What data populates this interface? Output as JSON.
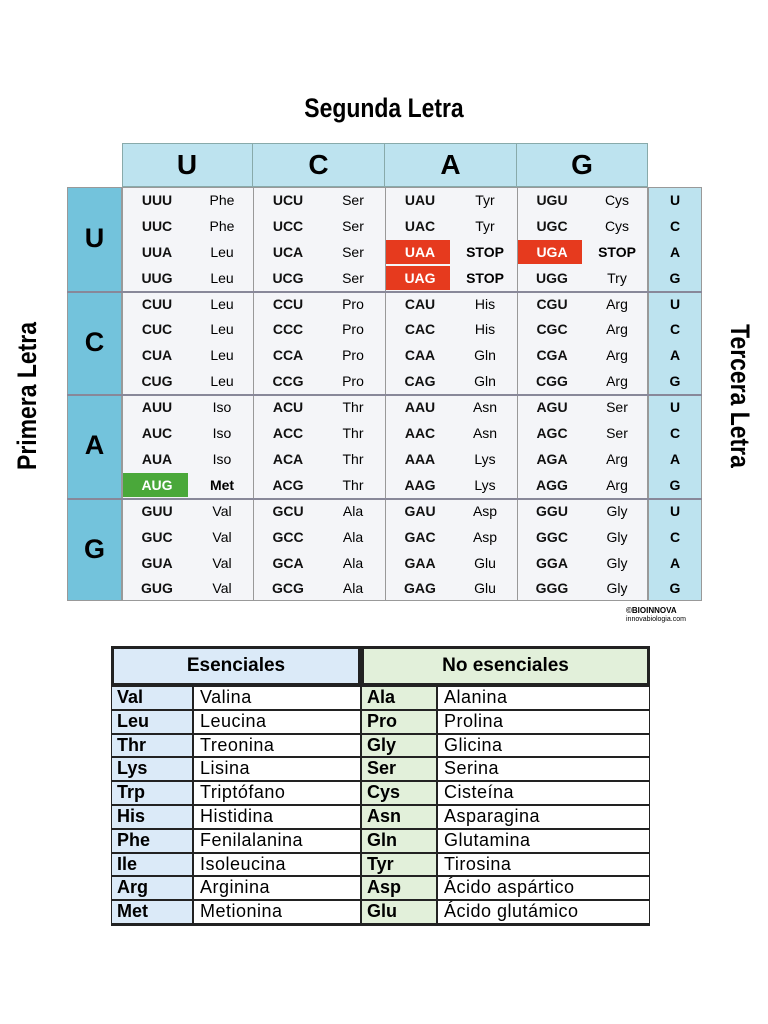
{
  "title": "Segunda Letra",
  "left_label": "Primera Letra",
  "right_label": "Tercera Letra",
  "second_letters": [
    "U",
    "C",
    "A",
    "G"
  ],
  "blocks": [
    {
      "first": "U",
      "rows": [
        {
          "third": "U",
          "cells": [
            {
              "codon": "UUU",
              "aa": "Phe"
            },
            {
              "codon": "UCU",
              "aa": "Ser"
            },
            {
              "codon": "UAU",
              "aa": "Tyr"
            },
            {
              "codon": "UGU",
              "aa": "Cys"
            }
          ]
        },
        {
          "third": "C",
          "cells": [
            {
              "codon": "UUC",
              "aa": "Phe"
            },
            {
              "codon": "UCC",
              "aa": "Ser"
            },
            {
              "codon": "UAC",
              "aa": "Tyr"
            },
            {
              "codon": "UGC",
              "aa": "Cys"
            }
          ]
        },
        {
          "third": "A",
          "cells": [
            {
              "codon": "UUA",
              "aa": "Leu"
            },
            {
              "codon": "UCA",
              "aa": "Ser"
            },
            {
              "codon": "UAA",
              "aa": "STOP",
              "color": "#e63a1e"
            },
            {
              "codon": "UGA",
              "aa": "STOP",
              "color": "#e63a1e"
            }
          ]
        },
        {
          "third": "G",
          "cells": [
            {
              "codon": "UUG",
              "aa": "Leu"
            },
            {
              "codon": "UCG",
              "aa": "Ser"
            },
            {
              "codon": "UAG",
              "aa": "STOP",
              "color": "#e63a1e"
            },
            {
              "codon": "UGG",
              "aa": "Try"
            }
          ]
        }
      ]
    },
    {
      "first": "C",
      "rows": [
        {
          "third": "U",
          "cells": [
            {
              "codon": "CUU",
              "aa": "Leu"
            },
            {
              "codon": "CCU",
              "aa": "Pro"
            },
            {
              "codon": "CAU",
              "aa": "His"
            },
            {
              "codon": "CGU",
              "aa": "Arg"
            }
          ]
        },
        {
          "third": "C",
          "cells": [
            {
              "codon": "CUC",
              "aa": "Leu"
            },
            {
              "codon": "CCC",
              "aa": "Pro"
            },
            {
              "codon": "CAC",
              "aa": "His"
            },
            {
              "codon": "CGC",
              "aa": "Arg"
            }
          ]
        },
        {
          "third": "A",
          "cells": [
            {
              "codon": "CUA",
              "aa": "Leu"
            },
            {
              "codon": "CCA",
              "aa": "Pro"
            },
            {
              "codon": "CAA",
              "aa": "Gln"
            },
            {
              "codon": "CGA",
              "aa": "Arg"
            }
          ]
        },
        {
          "third": "G",
          "cells": [
            {
              "codon": "CUG",
              "aa": "Leu"
            },
            {
              "codon": "CCG",
              "aa": "Pro"
            },
            {
              "codon": "CAG",
              "aa": "Gln"
            },
            {
              "codon": "CGG",
              "aa": "Arg"
            }
          ]
        }
      ]
    },
    {
      "first": "A",
      "rows": [
        {
          "third": "U",
          "cells": [
            {
              "codon": "AUU",
              "aa": "Iso"
            },
            {
              "codon": "ACU",
              "aa": "Thr"
            },
            {
              "codon": "AAU",
              "aa": "Asn"
            },
            {
              "codon": "AGU",
              "aa": "Ser"
            }
          ]
        },
        {
          "third": "C",
          "cells": [
            {
              "codon": "AUC",
              "aa": "Iso"
            },
            {
              "codon": "ACC",
              "aa": "Thr"
            },
            {
              "codon": "AAC",
              "aa": "Asn"
            },
            {
              "codon": "AGC",
              "aa": "Ser"
            }
          ]
        },
        {
          "third": "A",
          "cells": [
            {
              "codon": "AUA",
              "aa": "Iso"
            },
            {
              "codon": "ACA",
              "aa": "Thr"
            },
            {
              "codon": "AAA",
              "aa": "Lys"
            },
            {
              "codon": "AGA",
              "aa": "Arg"
            }
          ]
        },
        {
          "third": "G",
          "cells": [
            {
              "codon": "AUG",
              "aa": "Met",
              "color": "#4aa83a"
            },
            {
              "codon": "ACG",
              "aa": "Thr"
            },
            {
              "codon": "AAG",
              "aa": "Lys"
            },
            {
              "codon": "AGG",
              "aa": "Arg"
            }
          ]
        }
      ]
    },
    {
      "first": "G",
      "rows": [
        {
          "third": "U",
          "cells": [
            {
              "codon": "GUU",
              "aa": "Val"
            },
            {
              "codon": "GCU",
              "aa": "Ala"
            },
            {
              "codon": "GAU",
              "aa": "Asp"
            },
            {
              "codon": "GGU",
              "aa": "Gly"
            }
          ]
        },
        {
          "third": "C",
          "cells": [
            {
              "codon": "GUC",
              "aa": "Val"
            },
            {
              "codon": "GCC",
              "aa": "Ala"
            },
            {
              "codon": "GAC",
              "aa": "Asp"
            },
            {
              "codon": "GGC",
              "aa": "Gly"
            }
          ]
        },
        {
          "third": "A",
          "cells": [
            {
              "codon": "GUA",
              "aa": "Val"
            },
            {
              "codon": "GCA",
              "aa": "Ala"
            },
            {
              "codon": "GAA",
              "aa": "Glu"
            },
            {
              "codon": "GGA",
              "aa": "Gly"
            }
          ]
        },
        {
          "third": "G",
          "cells": [
            {
              "codon": "GUG",
              "aa": "Val"
            },
            {
              "codon": "GCG",
              "aa": "Ala"
            },
            {
              "codon": "GAG",
              "aa": "Glu"
            },
            {
              "codon": "GGG",
              "aa": "Gly"
            }
          ]
        }
      ]
    }
  ],
  "credit": {
    "brand": "©BIOINNOVA",
    "site": "innovabiologia.com"
  },
  "amino_table": {
    "headers": [
      "Esenciales",
      "No esenciales"
    ],
    "essential": [
      [
        "Val",
        "Valina"
      ],
      [
        "Leu",
        "Leucina"
      ],
      [
        "Thr",
        "Treonina"
      ],
      [
        "Lys",
        "Lisina"
      ],
      [
        "Trp",
        "Triptófano"
      ],
      [
        "His",
        "Histidina"
      ],
      [
        "Phe",
        "Fenilalanina"
      ],
      [
        "Ile",
        "Isoleucina"
      ],
      [
        "Arg",
        "Arginina"
      ],
      [
        "Met",
        "Metionina"
      ]
    ],
    "non_essential": [
      [
        "Ala",
        "Alanina"
      ],
      [
        "Pro",
        "Prolina"
      ],
      [
        "Gly",
        "Glicina"
      ],
      [
        "Ser",
        "Serina"
      ],
      [
        "Cys",
        "Cisteína"
      ],
      [
        "Asn",
        "Asparagina"
      ],
      [
        "Gln",
        "Glutamina"
      ],
      [
        "Tyr",
        "Tirosina"
      ],
      [
        "Asp",
        "Ácido aspártico"
      ],
      [
        "Glu",
        "Ácido glutámico"
      ]
    ]
  }
}
